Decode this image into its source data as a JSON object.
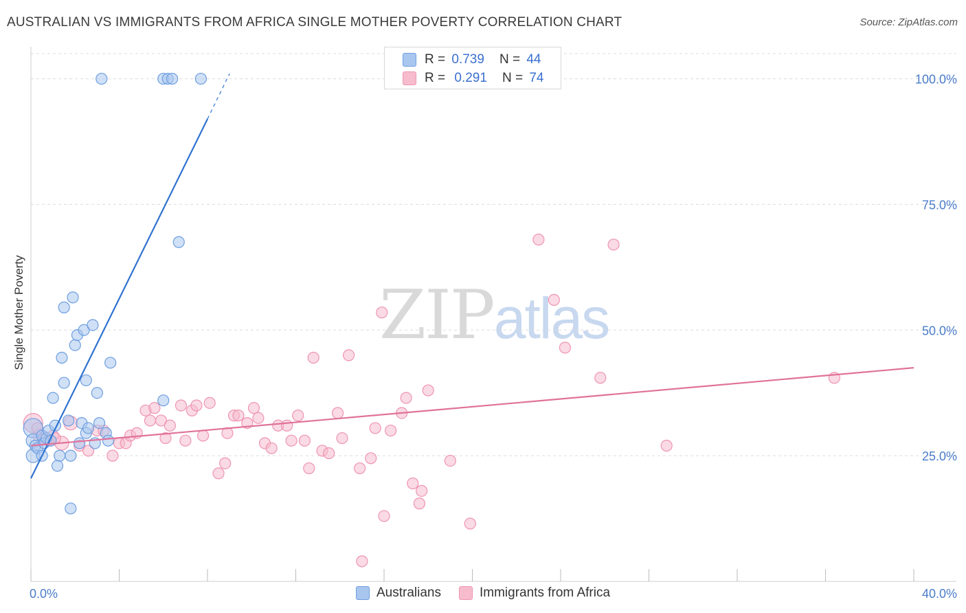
{
  "header": {
    "title": "AUSTRALIAN VS IMMIGRANTS FROM AFRICA SINGLE MOTHER POVERTY CORRELATION CHART",
    "source": "Source: ZipAtlas.com"
  },
  "watermark": {
    "zip": "ZIP",
    "atlas": "atlas"
  },
  "stats": {
    "australians": {
      "r_label": "R =",
      "r_value": "0.739",
      "n_label": "N =",
      "n_value": "44"
    },
    "africa": {
      "r_label": "R =",
      "r_value": "0.291",
      "n_label": "N =",
      "n_value": "74"
    }
  },
  "legend": {
    "australians": "Australians",
    "africa": "Immigrants from Africa"
  },
  "colors": {
    "blue_fill": "#a9c6ef",
    "blue_stroke": "#6d9ee0",
    "blue_line": "#2f72d0",
    "pink_fill": "#f6bccd",
    "pink_stroke": "#ee94b1",
    "pink_line": "#e0729a",
    "grid": "#dcdcdc",
    "axis_text": "#4a7cc9"
  },
  "chart_data": {
    "type": "scatter",
    "title": "AUSTRALIAN VS IMMIGRANTS FROM AFRICA SINGLE MOTHER POVERTY CORRELATION CHART",
    "xlabel": "",
    "ylabel": "Single Mother Poverty",
    "xlim": [
      0,
      40
    ],
    "ylim": [
      0,
      105
    ],
    "x_tick_labels": [
      "0.0%",
      "40.0%"
    ],
    "y_ticks": [
      25,
      50,
      75,
      100
    ],
    "y_tick_labels": [
      "25.0%",
      "50.0%",
      "75.0%",
      "100.0%"
    ],
    "series": [
      {
        "name": "Australians",
        "r": 0.739,
        "n": 44,
        "trend": {
          "x0": 0,
          "y0": 20.5,
          "x1": 8.0,
          "y1": 92.0,
          "dash_to_x": 9.0,
          "dash_to_y": 101
        },
        "points": [
          [
            0.1,
            30.5,
            14
          ],
          [
            0.1,
            28.0,
            10
          ],
          [
            0.1,
            25.0,
            10
          ],
          [
            0.2,
            27.0,
            8
          ],
          [
            0.3,
            26.5,
            8
          ],
          [
            0.5,
            29.0,
            8
          ],
          [
            0.5,
            25.0,
            8
          ],
          [
            0.6,
            27.5,
            8
          ],
          [
            0.7,
            28.5,
            8
          ],
          [
            0.8,
            30.0,
            8
          ],
          [
            0.9,
            28.0,
            8
          ],
          [
            1.0,
            36.5,
            8
          ],
          [
            1.1,
            31.0,
            8
          ],
          [
            1.2,
            23.0,
            8
          ],
          [
            1.3,
            25.0,
            8
          ],
          [
            1.4,
            44.5,
            8
          ],
          [
            1.5,
            54.5,
            8
          ],
          [
            1.5,
            39.5,
            8
          ],
          [
            1.7,
            32.0,
            8
          ],
          [
            1.8,
            14.5,
            8
          ],
          [
            1.8,
            25.0,
            8
          ],
          [
            1.9,
            56.5,
            8
          ],
          [
            2.0,
            47.0,
            8
          ],
          [
            2.1,
            49.0,
            8
          ],
          [
            2.2,
            27.5,
            8
          ],
          [
            2.3,
            31.5,
            8
          ],
          [
            2.4,
            50.0,
            8
          ],
          [
            2.5,
            40.0,
            8
          ],
          [
            2.5,
            29.5,
            8
          ],
          [
            2.6,
            30.5,
            8
          ],
          [
            2.8,
            51.0,
            8
          ],
          [
            2.9,
            27.5,
            8
          ],
          [
            3.0,
            37.5,
            8
          ],
          [
            3.1,
            31.5,
            8
          ],
          [
            3.4,
            29.5,
            8
          ],
          [
            3.5,
            28.0,
            8
          ],
          [
            3.6,
            43.5,
            8
          ],
          [
            3.2,
            100.0,
            8
          ],
          [
            6.0,
            100.0,
            8
          ],
          [
            6.2,
            100.0,
            8
          ],
          [
            6.4,
            100.0,
            8
          ],
          [
            7.7,
            100.0,
            8
          ],
          [
            6.7,
            67.5,
            8
          ],
          [
            6.0,
            36.0,
            8
          ]
        ]
      },
      {
        "name": "Immigrants from Africa",
        "r": 0.291,
        "n": 74,
        "trend": {
          "x0": 0,
          "y0": 27.0,
          "x1": 40,
          "y1": 42.5
        },
        "points": [
          [
            0.1,
            31.5,
            14
          ],
          [
            0.4,
            29.0,
            10
          ],
          [
            0.6,
            28.5,
            10
          ],
          [
            0.8,
            28.0,
            8
          ],
          [
            1.0,
            29.0,
            8
          ],
          [
            1.4,
            27.5,
            10
          ],
          [
            1.8,
            31.5,
            10
          ],
          [
            2.2,
            27.0,
            8
          ],
          [
            2.6,
            26.0,
            8
          ],
          [
            3.0,
            30.0,
            8
          ],
          [
            3.3,
            30.0,
            8
          ],
          [
            3.7,
            25.0,
            8
          ],
          [
            4.0,
            27.5,
            8
          ],
          [
            4.3,
            27.5,
            8
          ],
          [
            4.5,
            29.0,
            8
          ],
          [
            4.8,
            29.5,
            8
          ],
          [
            5.2,
            34.0,
            8
          ],
          [
            5.4,
            32.0,
            8
          ],
          [
            5.6,
            34.5,
            8
          ],
          [
            5.9,
            32.0,
            8
          ],
          [
            6.1,
            28.5,
            8
          ],
          [
            6.3,
            31.0,
            8
          ],
          [
            6.8,
            35.0,
            8
          ],
          [
            7.0,
            28.0,
            8
          ],
          [
            7.3,
            34.0,
            8
          ],
          [
            7.5,
            35.0,
            8
          ],
          [
            7.8,
            29.0,
            8
          ],
          [
            8.1,
            35.5,
            8
          ],
          [
            8.5,
            21.5,
            8
          ],
          [
            8.8,
            23.5,
            8
          ],
          [
            8.9,
            29.5,
            8
          ],
          [
            9.2,
            33.0,
            8
          ],
          [
            9.4,
            33.0,
            8
          ],
          [
            9.8,
            31.5,
            8
          ],
          [
            10.1,
            34.5,
            8
          ],
          [
            10.3,
            32.5,
            8
          ],
          [
            10.6,
            27.5,
            8
          ],
          [
            10.9,
            26.5,
            8
          ],
          [
            11.2,
            31.0,
            8
          ],
          [
            11.6,
            31.0,
            8
          ],
          [
            11.8,
            28.0,
            8
          ],
          [
            12.1,
            33.0,
            8
          ],
          [
            12.4,
            28.0,
            8
          ],
          [
            12.6,
            22.5,
            8
          ],
          [
            12.8,
            44.5,
            8
          ],
          [
            13.2,
            26.0,
            8
          ],
          [
            13.5,
            25.5,
            8
          ],
          [
            13.9,
            33.5,
            8
          ],
          [
            14.1,
            28.5,
            8
          ],
          [
            14.4,
            45.0,
            8
          ],
          [
            14.9,
            22.5,
            8
          ],
          [
            15.0,
            4.0,
            8
          ],
          [
            15.4,
            24.5,
            8
          ],
          [
            15.6,
            30.5,
            8
          ],
          [
            15.9,
            53.5,
            8
          ],
          [
            16.3,
            30.0,
            8
          ],
          [
            16.0,
            13.0,
            8
          ],
          [
            16.8,
            33.5,
            8
          ],
          [
            17.0,
            36.5,
            8
          ],
          [
            17.3,
            19.5,
            8
          ],
          [
            17.7,
            18.0,
            8
          ],
          [
            17.6,
            15.5,
            8
          ],
          [
            18.0,
            38.0,
            8
          ],
          [
            19.0,
            24.0,
            8
          ],
          [
            19.9,
            11.5,
            8
          ],
          [
            23.0,
            68.0,
            8
          ],
          [
            23.7,
            56.0,
            8
          ],
          [
            24.2,
            46.5,
            8
          ],
          [
            25.8,
            40.5,
            8
          ],
          [
            26.4,
            67.0,
            8
          ],
          [
            28.8,
            27.0,
            8
          ],
          [
            36.4,
            40.5,
            8
          ],
          [
            0.3,
            30.5,
            8
          ],
          [
            1.1,
            28.5,
            8
          ]
        ]
      }
    ]
  }
}
